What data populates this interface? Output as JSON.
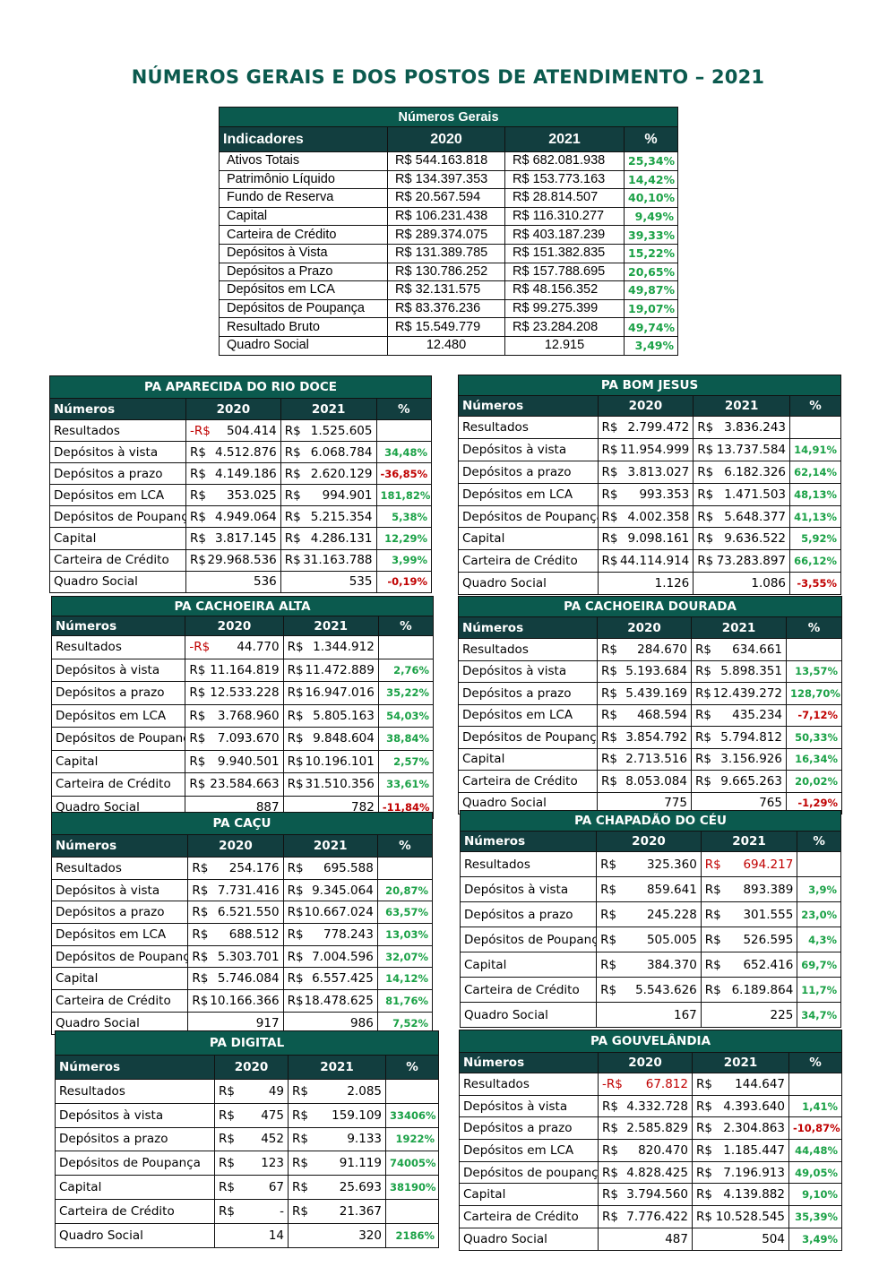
{
  "page_title": "NÚMEROS GERAIS E DOS POSTOS DE ATENDIMENTO – 2021",
  "colors": {
    "title": "#0b5a4e",
    "caption": "#0b5a4e",
    "header": "#123e3f",
    "positive": "#1aa146",
    "negative": "#c00000"
  },
  "general": {
    "caption": "Números Gerais",
    "headers": [
      "Indicadores",
      "2020",
      "2021",
      "%"
    ],
    "rows": [
      [
        "Ativos Totais",
        "R$ 544.163.818",
        "R$  682.081.938",
        "25,34%"
      ],
      [
        "Patrimônio Líquido",
        "R$ 134.397.353",
        "R$  153.773.163",
        "14,42%"
      ],
      [
        "Fundo de Reserva",
        "R$   20.567.594",
        "R$    28.814.507",
        "40,10%"
      ],
      [
        "Capital",
        "R$ 106.231.438",
        "R$  116.310.277",
        "9,49%"
      ],
      [
        "Carteira de Crédito",
        "R$ 289.374.075",
        "R$  403.187.239",
        "39,33%"
      ],
      [
        "Depósitos à Vista",
        "R$ 131.389.785",
        "R$  151.382.835",
        "15,22%"
      ],
      [
        "Depósitos a Prazo",
        "R$ 130.786.252",
        "R$  157.788.695",
        "20,65%"
      ],
      [
        "Depósitos em LCA",
        "R$   32.131.575",
        "R$    48.156.352",
        "49,87%"
      ],
      [
        "Depósitos de Poupança",
        "R$   83.376.236",
        "R$    99.275.399",
        "19,07%"
      ],
      [
        "Resultado Bruto",
        "R$   15.549.779",
        "R$    23.284.208",
        "49,74%"
      ],
      [
        "Quadro Social",
        "12.480",
        "12.915",
        "3,49%"
      ]
    ]
  },
  "pa_aparecida": {
    "caption": "PA APARECIDA DO RIO DOCE",
    "headers": [
      "Números",
      "2020",
      "2021",
      "%"
    ],
    "rows": [
      [
        "Resultados",
        "-R$",
        "504.414",
        "R$",
        "1.525.605",
        ""
      ],
      [
        "Depósitos à vista",
        "R$",
        "4.512.876",
        "R$",
        "6.068.784",
        "34,48%"
      ],
      [
        "Depósitos a prazo",
        "R$",
        "4.149.186",
        "R$",
        "2.620.129",
        "-36,85%"
      ],
      [
        "Depósitos em LCA",
        "R$",
        "353.025",
        "R$",
        "994.901",
        "181,82%"
      ],
      [
        "Depósitos de Poupança",
        "R$",
        "4.949.064",
        "R$",
        "5.215.354",
        "5,38%"
      ],
      [
        "Capital",
        "R$",
        "3.817.145",
        "R$",
        "4.286.131",
        "12,29%"
      ],
      [
        "Carteira de Crédito",
        "R$",
        "29.968.536",
        "R$",
        "31.163.788",
        "3,99%"
      ],
      [
        "Quadro Social",
        "",
        "536",
        "",
        "535",
        "-0,19%"
      ]
    ]
  },
  "pa_bomjesus": {
    "caption": "PA BOM JESUS",
    "headers": [
      "Números",
      "2020",
      "2021",
      "%"
    ],
    "rows": [
      [
        "Resultados",
        "R$",
        "2.799.472",
        "R$",
        "3.836.243",
        ""
      ],
      [
        "Depósitos à vista",
        "R$",
        "11.954.999",
        "R$",
        "13.737.584",
        "14,91%"
      ],
      [
        "Depósitos a prazo",
        "R$",
        "3.813.027",
        "R$",
        "6.182.326",
        "62,14%"
      ],
      [
        "Depósitos em LCA",
        "R$",
        "993.353",
        "R$",
        "1.471.503",
        "48,13%"
      ],
      [
        "Depósitos de Poupança",
        "R$",
        "4.002.358",
        "R$",
        "5.648.377",
        "41,13%"
      ],
      [
        "Capital",
        "R$",
        "9.098.161",
        "R$",
        "9.636.522",
        "5,92%"
      ],
      [
        "Carteira de Crédito",
        "R$",
        "44.114.914",
        "R$",
        "73.283.897",
        "66,12%"
      ],
      [
        "Quadro Social",
        "",
        "1.126",
        "",
        "1.086",
        "-3,55%"
      ]
    ]
  },
  "pa_cachoeira_alta": {
    "caption": "PA CACHOEIRA ALTA",
    "headers": [
      "Números",
      "2020",
      "2021",
      "%"
    ],
    "rows": [
      [
        "Resultados",
        "-R$",
        "44.770",
        "R$",
        "1.344.912",
        ""
      ],
      [
        "Depósitos à vista",
        "R$",
        "11.164.819",
        "R$",
        "11.472.889",
        "2,76%"
      ],
      [
        "Depósitos a prazo",
        "R$",
        "12.533.228",
        "R$",
        "16.947.016",
        "35,22%"
      ],
      [
        "Depósitos em LCA",
        "R$",
        "3.768.960",
        "R$",
        "5.805.163",
        "54,03%"
      ],
      [
        "Depósitos de Poupança",
        "R$",
        "7.093.670",
        "R$",
        "9.848.604",
        "38,84%"
      ],
      [
        "Capital",
        "R$",
        "9.940.501",
        "R$",
        "10.196.101",
        "2,57%"
      ],
      [
        "Carteira de Crédito",
        "R$",
        "23.584.663",
        "R$",
        "31.510.356",
        "33,61%"
      ],
      [
        "Quadro Social",
        "",
        "887",
        "",
        "782",
        "-11,84%"
      ]
    ]
  },
  "pa_cachoeira_dourada": {
    "caption": "PA CACHOEIRA DOURADA",
    "headers": [
      "Números",
      "2020",
      "2021",
      "%"
    ],
    "rows": [
      [
        "Resultados",
        "R$",
        "284.670",
        "R$",
        "634.661",
        ""
      ],
      [
        "Depósitos à vista",
        "R$",
        "5.193.684",
        "R$",
        "5.898.351",
        "13,57%"
      ],
      [
        "Depósitos a prazo",
        "R$",
        "5.439.169",
        "R$",
        "12.439.272",
        "128,70%"
      ],
      [
        "Depósitos em LCA",
        "R$",
        "468.594",
        "R$",
        "435.234",
        "-7,12%"
      ],
      [
        "Depósitos de Poupança",
        "R$",
        "3.854.792",
        "R$",
        "5.794.812",
        "50,33%"
      ],
      [
        "Capital",
        "R$",
        "2.713.516",
        "R$",
        "3.156.926",
        "16,34%"
      ],
      [
        "Carteira de Crédito",
        "R$",
        "8.053.084",
        "R$",
        "9.665.263",
        "20,02%"
      ],
      [
        "Quadro Social",
        "",
        "775",
        "",
        "765",
        "-1,29%"
      ]
    ]
  },
  "pa_cacu": {
    "caption": "PA CAÇU",
    "headers": [
      "Números",
      "2020",
      "2021",
      "%"
    ],
    "rows": [
      [
        "Resultados",
        "R$",
        "254.176",
        "R$",
        "695.588",
        ""
      ],
      [
        "Depósitos à vista",
        "R$",
        "7.731.416",
        "R$",
        "9.345.064",
        "20,87%"
      ],
      [
        "Depósitos a prazo",
        "R$",
        "6.521.550",
        "R$",
        "10.667.024",
        "63,57%"
      ],
      [
        "Depósitos em LCA",
        "R$",
        "688.512",
        "R$",
        "778.243",
        "13,03%"
      ],
      [
        "Depósitos de Poupança",
        "R$",
        "5.303.701",
        "R$",
        "7.004.596",
        "32,07%"
      ],
      [
        "Capital",
        "R$",
        "5.746.084",
        "R$",
        "6.557.425",
        "14,12%"
      ],
      [
        "Carteira de Crédito",
        "R$",
        "10.166.366",
        "R$",
        "18.478.625",
        "81,76%"
      ],
      [
        "Quadro Social",
        "",
        "917",
        "",
        "986",
        "7,52%"
      ]
    ]
  },
  "pa_chapadao": {
    "caption": "PA CHAPADÃO DO CÉU",
    "headers": [
      "Números",
      "2020",
      "2021",
      "%"
    ],
    "rows": [
      [
        "Resultados",
        "R$",
        "325.360",
        "R$",
        "694.217",
        ""
      ],
      [
        "Depósitos à vista",
        "R$",
        "859.641",
        "R$",
        "893.389",
        "3,9%"
      ],
      [
        "Depósitos a prazo",
        "R$",
        "245.228",
        "R$",
        "301.555",
        "23,0%"
      ],
      [
        "Depósitos de Poupança",
        "R$",
        "505.005",
        "R$",
        "526.595",
        "4,3%"
      ],
      [
        "Capital",
        "R$",
        "384.370",
        "R$",
        "652.416",
        "69,7%"
      ],
      [
        "Carteira de Crédito",
        "R$",
        "5.543.626",
        "R$",
        "6.189.864",
        "11,7%"
      ],
      [
        "Quadro Social",
        "",
        "167",
        "",
        "225",
        "34,7%"
      ]
    ]
  },
  "pa_digital": {
    "caption": "PA DIGITAL",
    "headers": [
      "Números",
      "2020",
      "2021",
      "%"
    ],
    "rows": [
      [
        "Resultados",
        "R$",
        "49",
        "R$",
        "2.085",
        ""
      ],
      [
        "Depósitos à vista",
        "R$",
        "475",
        "R$",
        "159.109",
        "33406%"
      ],
      [
        "Depósitos a prazo",
        "R$",
        "452",
        "R$",
        "9.133",
        "1922%"
      ],
      [
        "Depósitos de Poupança",
        "R$",
        "123",
        "R$",
        "91.119",
        "74005%"
      ],
      [
        "Capital",
        "R$",
        "67",
        "R$",
        "25.693",
        "38190%"
      ],
      [
        "Carteira de Crédito",
        "R$",
        "-",
        "R$",
        "21.367",
        ""
      ],
      [
        "Quadro Social",
        "",
        "14",
        "",
        "320",
        "2186%"
      ]
    ]
  },
  "pa_gouvelandia": {
    "caption": "PA GOUVELÂNDIA",
    "headers": [
      "Números",
      "2020",
      "2021",
      "%"
    ],
    "rows": [
      [
        "Resultados",
        "-R$",
        "67.812",
        "R$",
        "144.647",
        ""
      ],
      [
        "Depósitos à vista",
        "R$",
        "4.332.728",
        "R$",
        "4.393.640",
        "1,41%"
      ],
      [
        "Depósitos a prazo",
        "R$",
        "2.585.829",
        "R$",
        "2.304.863",
        "-10,87%"
      ],
      [
        "Depósitos em LCA",
        "R$",
        "820.470",
        "R$",
        "1.185.447",
        "44,48%"
      ],
      [
        "Depósitos de poupança",
        "R$",
        "4.828.425",
        "R$",
        "7.196.913",
        "49,05%"
      ],
      [
        "Capital",
        "R$",
        "3.794.560",
        "R$",
        "4.139.882",
        "9,10%"
      ],
      [
        "Carteira de Crédito",
        "R$",
        "7.776.422",
        "R$",
        "10.528.545",
        "35,39%"
      ],
      [
        "Quadro Social",
        "",
        "487",
        "",
        "504",
        "3,49%"
      ]
    ]
  }
}
